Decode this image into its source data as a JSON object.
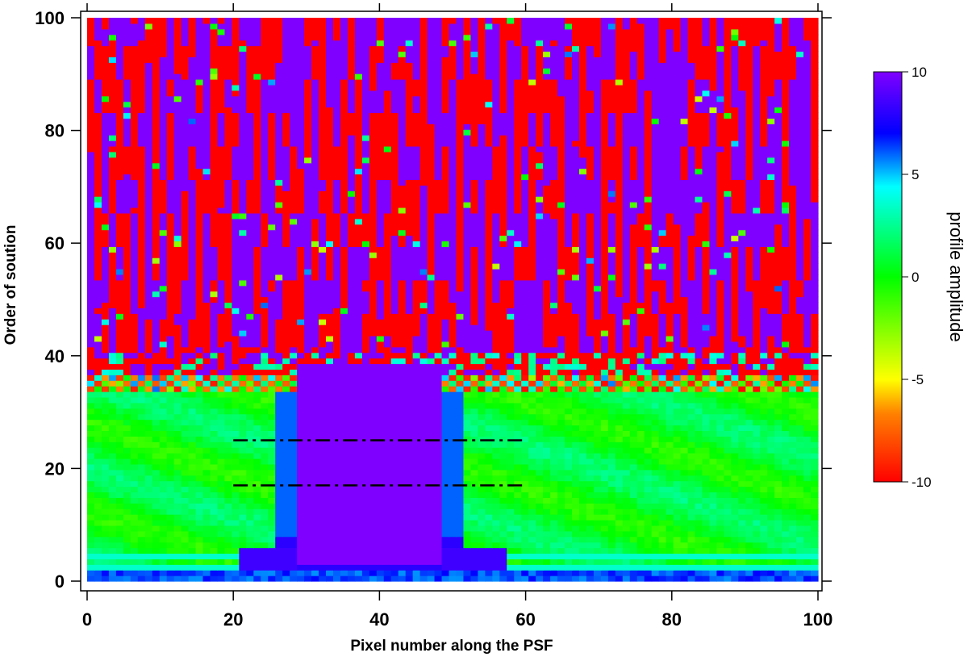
{
  "chart_data": {
    "type": "heatmap",
    "title": "",
    "xlabel": "Pixel number along the PSF",
    "ylabel": "Order of soution",
    "xlim": [
      0,
      100
    ],
    "ylim": [
      0,
      100
    ],
    "x_ticks": [
      0,
      20,
      40,
      60,
      80,
      100
    ],
    "y_ticks": [
      0,
      20,
      40,
      60,
      80,
      100
    ],
    "grid": false,
    "colorbar": {
      "title": "profile amplitude",
      "range": [
        -10,
        10
      ],
      "ticks": [
        10,
        5,
        0,
        -5,
        -10
      ],
      "tick_labels": [
        "10",
        "5",
        "0",
        "-5",
        "-10"
      ],
      "colormap": [
        "#ff0000",
        "#ff8000",
        "#ffff00",
        "#00ff00",
        "#00ffff",
        "#0000ff",
        "#8000ff"
      ]
    },
    "regions": [
      {
        "description": "central plateau of saturated high amplitude",
        "x": [
          29,
          48
        ],
        "y": [
          2,
          40
        ],
        "value": 10
      },
      {
        "description": "low-order smooth solution, near zero",
        "y": [
          3,
          33
        ],
        "value": 1
      },
      {
        "description": "transition band alternating sign",
        "y": [
          33,
          40
        ],
        "value_range": [
          -10,
          10
        ]
      },
      {
        "description": "high-order solutions alternating between saturated values",
        "y": [
          40,
          100
        ],
        "value_range": [
          -10,
          10
        ]
      },
      {
        "description": "bottom row band",
        "y": [
          0,
          2
        ],
        "value": 6
      }
    ],
    "annotations": [
      {
        "type": "dash-dot line",
        "x": [
          20,
          60
        ],
        "y": 25
      },
      {
        "type": "dash-dot line",
        "x": [
          20,
          60
        ],
        "y": 17
      }
    ]
  }
}
